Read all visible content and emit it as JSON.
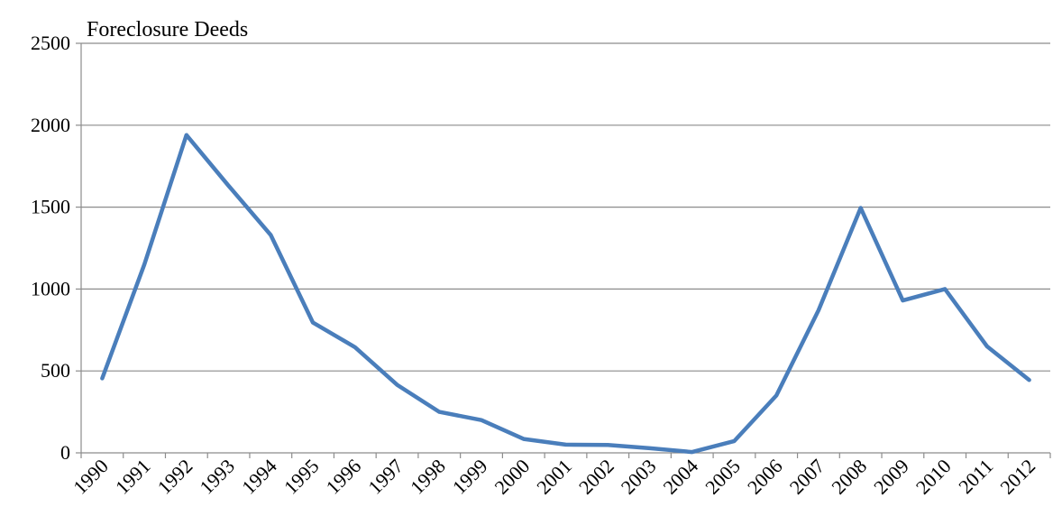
{
  "chart_data": {
    "type": "line",
    "title": "Foreclosure Deeds",
    "xlabel": "",
    "ylabel": "",
    "categories": [
      "1990",
      "1991",
      "1992",
      "1993",
      "1994",
      "1995",
      "1996",
      "1997",
      "1998",
      "1999",
      "2000",
      "2001",
      "2002",
      "2003",
      "2004",
      "2005",
      "2006",
      "2007",
      "2008",
      "2009",
      "2010",
      "2011",
      "2012"
    ],
    "series": [
      {
        "values": [
          455,
          1150,
          1940,
          1630,
          1330,
          795,
          645,
          415,
          250,
          200,
          85,
          50,
          48,
          28,
          5,
          72,
          350,
          870,
          1495,
          930,
          1000,
          650,
          445
        ]
      }
    ],
    "ylim": [
      0,
      2500
    ],
    "yticks": [
      0,
      500,
      1000,
      1500,
      2000,
      2500
    ],
    "grid": true,
    "legend": "none",
    "line_color": "#4A7EBB",
    "grid_color": "#8C8C8C"
  }
}
